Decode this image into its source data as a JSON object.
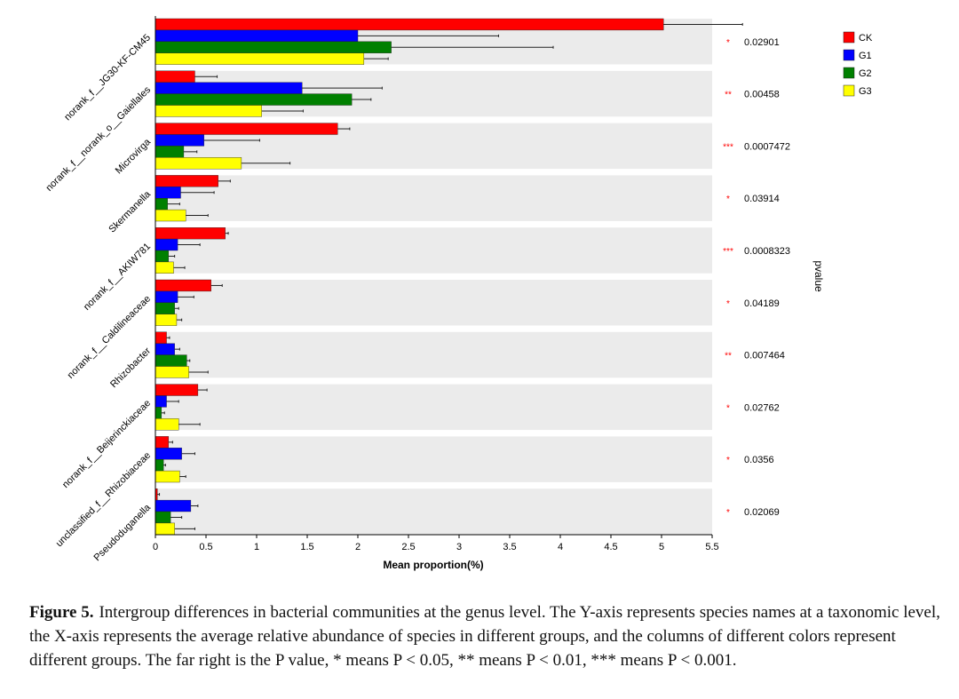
{
  "chart_data": {
    "type": "bar",
    "orientation": "horizontal",
    "categories": [
      "norank_f__JG30-KF-CM45",
      "norank_f__norank_o__Gaiellales",
      "Microvirga",
      "Skermanella",
      "norank_f__AKIW781",
      "norank_f__Caldilineaceae",
      "Rhizobacter",
      "norank_f__Beijerinckiaceae",
      "unclassified_f__Rhizobiaceae",
      "Pseudoduganella"
    ],
    "series": [
      {
        "name": "CK",
        "color": "#ff0000",
        "values": [
          5.02,
          0.39,
          1.8,
          0.62,
          0.69,
          0.55,
          0.11,
          0.42,
          0.13,
          0.02
        ],
        "errors": [
          0.78,
          0.22,
          0.12,
          0.12,
          0.03,
          0.11,
          0.03,
          0.09,
          0.04,
          0.02
        ]
      },
      {
        "name": "G1",
        "color": "#0000ff",
        "values": [
          2.0,
          1.45,
          0.48,
          0.25,
          0.22,
          0.22,
          0.19,
          0.11,
          0.26,
          0.35
        ],
        "errors": [
          1.39,
          0.79,
          0.55,
          0.33,
          0.22,
          0.16,
          0.05,
          0.12,
          0.13,
          0.07
        ]
      },
      {
        "name": "G2",
        "color": "#008000",
        "values": [
          2.33,
          1.94,
          0.28,
          0.12,
          0.13,
          0.19,
          0.31,
          0.06,
          0.08,
          0.15
        ],
        "errors": [
          1.6,
          0.19,
          0.13,
          0.12,
          0.06,
          0.04,
          0.03,
          0.03,
          0.02,
          0.11
        ]
      },
      {
        "name": "G3",
        "color": "#ffff00",
        "values": [
          2.06,
          1.05,
          0.85,
          0.3,
          0.18,
          0.21,
          0.33,
          0.23,
          0.24,
          0.19
        ],
        "errors": [
          0.24,
          0.41,
          0.48,
          0.22,
          0.11,
          0.05,
          0.19,
          0.21,
          0.06,
          0.2
        ]
      }
    ],
    "pvalues": [
      "0.02901",
      "0.00458",
      "0.0007472",
      "0.03914",
      "0.0008323",
      "0.04189",
      "0.007464",
      "0.02762",
      "0.0356",
      "0.02069"
    ],
    "significance": [
      "*",
      "**",
      "***",
      "*",
      "***",
      "*",
      "**",
      "*",
      "*",
      "*"
    ],
    "xlabel": "Mean proportion(%)",
    "ylabel": "",
    "pvalue_axis_label": "pvalue",
    "xlim": [
      0,
      5.5
    ],
    "xticks": [
      "0",
      "0.5",
      "1",
      "1.5",
      "2",
      "2.5",
      "3",
      "3.5",
      "4",
      "4.5",
      "5",
      "5.5"
    ],
    "legend_position": "top-right",
    "legend_entries": [
      "CK",
      "G1",
      "G2",
      "G3"
    ]
  },
  "caption": {
    "figure_label": "Figure 5.",
    "text": "Intergroup differences in bacterial communities at the genus level. The Y-axis represents species names at a taxonomic level, the X-axis represents the average relative abundance of species in different groups, and the columns of different colors represent different groups. The far right is the P value, * means P < 0.05, ** means P < 0.01, *** means P < 0.001."
  },
  "colors": {
    "panel_background": "#ebebeb",
    "axis": "#000000",
    "significance_star": "#ff0000"
  }
}
